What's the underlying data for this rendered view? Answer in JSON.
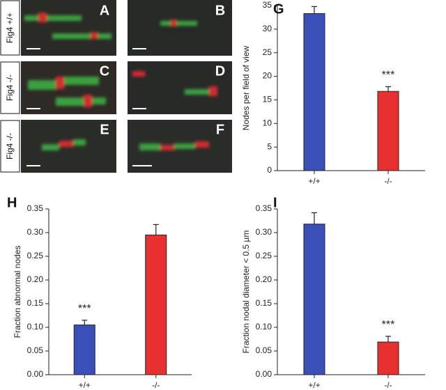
{
  "images": {
    "rows": [
      "Fig4 +/+",
      "Fig4 -/-",
      "Fig4 -/-"
    ],
    "panels": [
      "A",
      "B",
      "C",
      "D",
      "E",
      "F"
    ]
  },
  "chart_data": [
    {
      "type": "bar",
      "panel": "G",
      "ylabel": "Nodes per field of view",
      "categories": [
        "+/+",
        "-/-"
      ],
      "values": [
        33.3,
        16.8
      ],
      "errors": [
        1.5,
        1.0
      ],
      "colors": [
        "#3a4fb8",
        "#e83030"
      ],
      "value_annotations": [
        null,
        "***"
      ],
      "ylim": [
        0,
        35
      ],
      "yticks": [
        0,
        5,
        10,
        15,
        20,
        25,
        30,
        35
      ]
    },
    {
      "type": "bar",
      "panel": "H",
      "ylabel": "Fraction abnormal nodes",
      "categories": [
        "+/+",
        "-/-"
      ],
      "values": [
        0.105,
        0.295
      ],
      "errors": [
        0.01,
        0.022
      ],
      "colors": [
        "#3a4fb8",
        "#e83030"
      ],
      "value_annotations": [
        "***",
        null
      ],
      "ylim": [
        0,
        0.35
      ],
      "yticks": [
        {
          "value": 0,
          "label": "0.00"
        },
        {
          "value": 0.05,
          "label": "0.05"
        },
        {
          "value": 0.1,
          "label": "0.10"
        },
        {
          "value": 0.15,
          "label": "0.15"
        },
        {
          "value": 0.2,
          "label": "0.20"
        },
        {
          "value": 0.25,
          "label": "0.25"
        },
        {
          "value": 0.3,
          "label": "0.30"
        },
        {
          "value": 0.35,
          "label": "0.35"
        }
      ]
    },
    {
      "type": "bar",
      "panel": "I",
      "ylabel": "Fraction nodal diameter < 0.5 µm",
      "categories": [
        "+/+",
        "-/-"
      ],
      "values": [
        0.318,
        0.069
      ],
      "errors": [
        0.024,
        0.012
      ],
      "colors": [
        "#3a4fb8",
        "#e83030"
      ],
      "value_annotations": [
        null,
        "***"
      ],
      "ylim": [
        0,
        0.35
      ],
      "yticks": [
        {
          "value": 0,
          "label": "0.00"
        },
        {
          "value": 0.05,
          "label": "0.05"
        },
        {
          "value": 0.1,
          "label": "0.10"
        },
        {
          "value": 0.15,
          "label": "0.15"
        },
        {
          "value": 0.2,
          "label": "0.20"
        },
        {
          "value": 0.25,
          "label": "0.25"
        },
        {
          "value": 0.3,
          "label": "0.30"
        },
        {
          "value": 0.35,
          "label": "0.35"
        }
      ]
    }
  ]
}
